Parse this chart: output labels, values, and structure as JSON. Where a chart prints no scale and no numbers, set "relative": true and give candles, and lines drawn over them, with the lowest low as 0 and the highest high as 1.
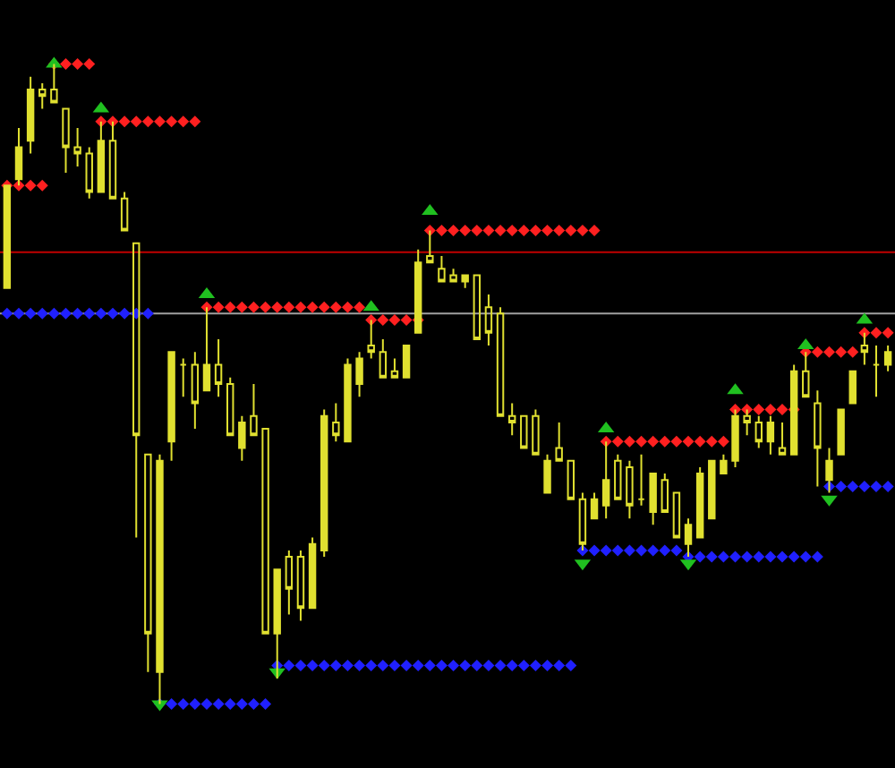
{
  "chart_data": {
    "type": "candlestick",
    "relative": true,
    "grid": false,
    "color": "#e0e030",
    "categories": [
      null,
      null,
      null,
      null,
      null,
      null,
      null,
      null,
      null,
      null,
      null,
      null,
      null,
      null,
      null,
      null,
      null,
      null,
      null,
      null,
      null,
      null,
      null,
      null,
      null,
      null,
      null,
      null,
      null,
      null,
      null,
      null,
      null,
      null,
      null,
      null,
      null,
      null,
      null,
      null,
      null,
      null,
      null,
      null,
      null,
      null,
      null,
      null,
      null,
      null,
      null,
      null,
      null,
      null,
      null,
      null,
      null,
      null,
      null,
      null,
      null,
      null,
      null,
      null,
      null,
      null,
      null,
      null,
      null,
      null,
      null,
      null,
      null,
      null,
      null,
      null
    ],
    "ohlc": [
      [
        0.65,
        0.81,
        0.65,
        0.81
      ],
      [
        0.82,
        0.9,
        0.81,
        0.87
      ],
      [
        0.88,
        0.98,
        0.86,
        0.96
      ],
      [
        0.96,
        0.97,
        0.93,
        0.95
      ],
      [
        0.96,
        1,
        0.94,
        0.94
      ],
      [
        0.93,
        0.93,
        0.83,
        0.87
      ],
      [
        0.87,
        0.9,
        0.84,
        0.86
      ],
      [
        0.86,
        0.87,
        0.79,
        0.8
      ],
      [
        0.8,
        0.91,
        0.8,
        0.88
      ],
      [
        0.88,
        0.91,
        0.79,
        0.79
      ],
      [
        0.79,
        0.8,
        0.74,
        0.74
      ],
      [
        0.72,
        0.72,
        0.26,
        0.42
      ],
      [
        0.39,
        0.39,
        0.05,
        0.11
      ],
      [
        0.05,
        0.39,
        0,
        0.38
      ],
      [
        0.41,
        0.55,
        0.38,
        0.55
      ],
      [
        0.53,
        0.54,
        0.48,
        0.53
      ],
      [
        0.53,
        0.55,
        0.43,
        0.47
      ],
      [
        0.49,
        0.62,
        0.49,
        0.53
      ],
      [
        0.53,
        0.57,
        0.48,
        0.5
      ],
      [
        0.5,
        0.51,
        0.42,
        0.42
      ],
      [
        0.4,
        0.45,
        0.38,
        0.44
      ],
      [
        0.45,
        0.5,
        0.42,
        0.42
      ],
      [
        0.43,
        0.43,
        0.11,
        0.11
      ],
      [
        0.11,
        0.21,
        0.04,
        0.21
      ],
      [
        0.23,
        0.24,
        0.14,
        0.18
      ],
      [
        0.23,
        0.24,
        0.13,
        0.15
      ],
      [
        0.15,
        0.26,
        0.15,
        0.25
      ],
      [
        0.24,
        0.46,
        0.23,
        0.45
      ],
      [
        0.44,
        0.47,
        0.41,
        0.42
      ],
      [
        0.41,
        0.54,
        0.41,
        0.53
      ],
      [
        0.5,
        0.55,
        0.48,
        0.54
      ],
      [
        0.56,
        0.6,
        0.54,
        0.55
      ],
      [
        0.55,
        0.57,
        0.51,
        0.51
      ],
      [
        0.52,
        0.54,
        0.51,
        0.51
      ],
      [
        0.51,
        0.56,
        0.51,
        0.56
      ],
      [
        0.58,
        0.71,
        0.58,
        0.69
      ],
      [
        0.7,
        0.74,
        0.69,
        0.69
      ],
      [
        0.68,
        0.7,
        0.66,
        0.66
      ],
      [
        0.67,
        0.68,
        0.66,
        0.66
      ],
      [
        0.66,
        0.67,
        0.65,
        0.67
      ],
      [
        0.67,
        0.67,
        0.57,
        0.57
      ],
      [
        0.62,
        0.64,
        0.56,
        0.58
      ],
      [
        0.61,
        0.62,
        0.45,
        0.45
      ],
      [
        0.45,
        0.47,
        0.42,
        0.44
      ],
      [
        0.45,
        0.45,
        0.4,
        0.4
      ],
      [
        0.45,
        0.46,
        0.39,
        0.39
      ],
      [
        0.33,
        0.39,
        0.33,
        0.38
      ],
      [
        0.4,
        0.44,
        0.38,
        0.38
      ],
      [
        0.38,
        0.38,
        0.32,
        0.32
      ],
      [
        0.32,
        0.33,
        0.24,
        0.25
      ],
      [
        0.29,
        0.33,
        0.29,
        0.32
      ],
      [
        0.31,
        0.41,
        0.29,
        0.35
      ],
      [
        0.38,
        0.39,
        0.32,
        0.32
      ],
      [
        0.37,
        0.38,
        0.29,
        0.31
      ],
      [
        0.32,
        0.39,
        0.31,
        0.32
      ],
      [
        0.3,
        0.36,
        0.28,
        0.36
      ],
      [
        0.35,
        0.36,
        0.3,
        0.3
      ],
      [
        0.33,
        0.33,
        0.26,
        0.26
      ],
      [
        0.25,
        0.29,
        0.23,
        0.28
      ],
      [
        0.26,
        0.37,
        0.26,
        0.36
      ],
      [
        0.29,
        0.38,
        0.29,
        0.38
      ],
      [
        0.36,
        0.39,
        0.36,
        0.38
      ],
      [
        0.38,
        0.46,
        0.37,
        0.45
      ],
      [
        0.45,
        0.46,
        0.42,
        0.44
      ],
      [
        0.44,
        0.45,
        0.4,
        0.41
      ],
      [
        0.41,
        0.45,
        0.39,
        0.44
      ],
      [
        0.4,
        0.44,
        0.39,
        0.39
      ],
      [
        0.39,
        0.53,
        0.39,
        0.52
      ],
      [
        0.52,
        0.55,
        0.48,
        0.48
      ],
      [
        0.47,
        0.49,
        0.34,
        0.4
      ],
      [
        0.35,
        0.4,
        0.33,
        0.38
      ],
      [
        0.39,
        0.46,
        0.39,
        0.46
      ],
      [
        0.47,
        0.52,
        0.47,
        0.52
      ],
      [
        0.56,
        0.58,
        0.53,
        0.55
      ],
      [
        0.53,
        0.56,
        0.48,
        0.53
      ],
      [
        0.53,
        0.56,
        0.52,
        0.55
      ]
    ],
    "series": [
      {
        "type": "scatter",
        "marker": "diamond",
        "color": "#ff2020",
        "values": [
          0.81,
          0.81,
          0.81,
          0.81,
          1,
          1,
          1,
          1,
          0.91,
          0.91,
          0.91,
          0.91,
          0.91,
          0.91,
          0.91,
          0.91,
          0.91,
          0.62,
          0.62,
          0.62,
          0.62,
          0.62,
          0.62,
          0.62,
          0.62,
          0.62,
          0.62,
          0.62,
          0.62,
          0.62,
          0.62,
          0.6,
          0.6,
          0.6,
          0.6,
          0.6,
          0.74,
          0.74,
          0.74,
          0.74,
          0.74,
          0.74,
          0.74,
          0.74,
          0.74,
          0.74,
          0.74,
          0.74,
          0.74,
          0.74,
          0.74,
          0.41,
          0.41,
          0.41,
          0.41,
          0.41,
          0.41,
          0.41,
          0.41,
          0.41,
          0.41,
          0.41,
          0.46,
          0.46,
          0.46,
          0.46,
          0.46,
          0.46,
          0.55,
          0.55,
          0.55,
          0.55,
          0.55,
          0.58,
          0.58,
          0.58
        ]
      },
      {
        "type": "scatter",
        "marker": "diamond",
        "color": "#2020ff",
        "values": [
          0.61,
          0.61,
          0.61,
          0.61,
          0.61,
          0.61,
          0.61,
          0.61,
          0.61,
          0.61,
          0.61,
          0.61,
          0.61,
          0,
          0,
          0,
          0,
          0,
          0,
          0,
          0,
          0,
          0,
          0.06,
          0.06,
          0.06,
          0.06,
          0.06,
          0.06,
          0.06,
          0.06,
          0.06,
          0.06,
          0.06,
          0.06,
          0.06,
          0.06,
          0.06,
          0.06,
          0.06,
          0.06,
          0.06,
          0.06,
          0.06,
          0.06,
          0.06,
          0.06,
          0.06,
          0.06,
          0.24,
          0.24,
          0.24,
          0.24,
          0.24,
          0.24,
          0.24,
          0.24,
          0.24,
          0.23,
          0.23,
          0.23,
          0.23,
          0.23,
          0.23,
          0.23,
          0.23,
          0.23,
          0.23,
          0.23,
          0.23,
          0.34,
          0.34,
          0.34,
          0.34,
          0.34,
          0.34
        ]
      },
      {
        "type": "scatter",
        "marker": "triangle",
        "color": "#20c020",
        "values": [
          null,
          null,
          null,
          null,
          1,
          null,
          null,
          null,
          0.93,
          null,
          null,
          null,
          null,
          null,
          null,
          null,
          null,
          0.64,
          null,
          null,
          null,
          null,
          null,
          null,
          null,
          null,
          null,
          null,
          null,
          null,
          null,
          0.62,
          null,
          null,
          null,
          null,
          0.77,
          null,
          null,
          null,
          null,
          null,
          null,
          null,
          null,
          null,
          null,
          null,
          null,
          null,
          null,
          0.43,
          null,
          null,
          null,
          null,
          null,
          null,
          null,
          null,
          null,
          null,
          0.49,
          null,
          null,
          null,
          null,
          null,
          0.56,
          null,
          null,
          null,
          null,
          0.6,
          null,
          null
        ]
      },
      {
        "type": "scatter",
        "marker": "triangle-down",
        "color": "#20c020",
        "values": [
          null,
          null,
          null,
          null,
          null,
          null,
          null,
          null,
          null,
          null,
          null,
          null,
          null,
          0,
          null,
          null,
          null,
          null,
          null,
          null,
          null,
          null,
          null,
          0.05,
          null,
          null,
          null,
          null,
          null,
          null,
          null,
          null,
          null,
          null,
          null,
          null,
          null,
          null,
          null,
          null,
          null,
          null,
          null,
          null,
          null,
          null,
          null,
          null,
          null,
          0.22,
          null,
          null,
          null,
          null,
          null,
          null,
          null,
          null,
          0.22,
          null,
          null,
          null,
          null,
          null,
          null,
          null,
          null,
          null,
          null,
          null,
          0.32,
          null,
          null,
          null,
          null,
          null
        ]
      }
    ],
    "ref_lines": [
      {
        "axis": "y",
        "value": 0.706,
        "color": "#c00000"
      },
      {
        "axis": "y",
        "value": 0.61,
        "color": "#a0a0a0"
      }
    ]
  }
}
